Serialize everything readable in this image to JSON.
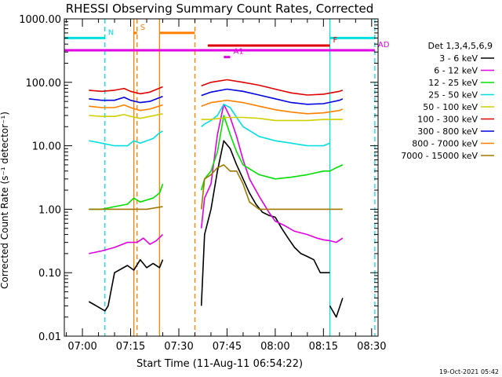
{
  "chart_data": {
    "type": "line",
    "title": "RHESSI Observing Summary Count Rates, Corrected",
    "xlabel": "Start Time (11-Aug-11 06:54:22)",
    "ylabel": "Corrected Count Rate (s⁻¹ detector⁻¹)",
    "yscale": "log",
    "ylim": [
      0.01,
      1000
    ],
    "xlim": [
      "06:54:22",
      "08:32:00"
    ],
    "y_ticks": [
      "0.01",
      "0.10",
      "1.00",
      "10.00",
      "100.00",
      "1000.00"
    ],
    "x_ticks": [
      "07:00",
      "07:15",
      "07:30",
      "07:45",
      "08:00",
      "08:15",
      "08:30"
    ],
    "legend": {
      "header": "Det 1,3,4,5,6,9",
      "placement": "right",
      "entries": [
        {
          "label": "3 - 6 keV",
          "color": "#000000"
        },
        {
          "label": "6 - 12 keV",
          "color": "#e000e0"
        },
        {
          "label": "12 - 25 keV",
          "color": "#00e000"
        },
        {
          "label": "25 - 50 keV",
          "color": "#00e0e0"
        },
        {
          "label": "50 - 100 keV",
          "color": "#d0d000"
        },
        {
          "label": "100 - 300 keV",
          "color": "#e00000"
        },
        {
          "label": "300 - 800 keV",
          "color": "#0000e0"
        },
        {
          "label": "800 - 7000 keV",
          "color": "#ff8000"
        },
        {
          "label": "7000 - 15000 keV",
          "color": "#a07800"
        }
      ]
    },
    "series": [
      {
        "name": "3 - 6 keV",
        "color": "#000000",
        "x": [
          "07:02",
          "07:07",
          "07:08",
          "07:10",
          "07:14",
          "07:16",
          "07:18",
          "07:20",
          "07:22",
          "07:24",
          "07:25",
          null,
          "07:37",
          "07:38",
          "07:40",
          "07:42",
          "07:44",
          "07:46",
          "07:48",
          "07:50",
          "07:52",
          "07:54",
          "07:56",
          "07:58",
          "08:00",
          "08:02",
          "08:04",
          "08:06",
          "08:08",
          "08:10",
          "08:12",
          "08:14",
          "08:16",
          "08:17",
          null,
          "08:17",
          "08:19",
          "08:21"
        ],
        "y": [
          0.035,
          0.025,
          0.03,
          0.1,
          0.13,
          0.11,
          0.16,
          0.12,
          0.14,
          0.12,
          0.16,
          null,
          0.03,
          0.4,
          1.0,
          4.0,
          12,
          9,
          5,
          3,
          1.8,
          1.2,
          0.9,
          0.8,
          0.75,
          0.5,
          0.35,
          0.25,
          0.2,
          0.18,
          0.16,
          0.1,
          0.1,
          0.1,
          null,
          0.03,
          0.02,
          0.04
        ]
      },
      {
        "name": "6 - 12 keV",
        "color": "#e000e0",
        "x": [
          "07:02",
          "07:06",
          "07:10",
          "07:14",
          "07:17",
          "07:19",
          "07:21",
          "07:23",
          "07:25",
          null,
          "07:37",
          "07:38",
          "07:40",
          "07:42",
          "07:44",
          "07:46",
          "07:48",
          "07:50",
          "07:52",
          "07:55",
          "07:58",
          "08:00",
          "08:03",
          "08:06",
          "08:10",
          "08:13",
          "08:15",
          "08:17",
          "08:19",
          "08:21"
        ],
        "y": [
          0.2,
          0.22,
          0.25,
          0.3,
          0.3,
          0.35,
          0.28,
          0.32,
          0.4,
          null,
          0.5,
          1.5,
          2.5,
          15,
          45,
          28,
          14,
          6,
          3,
          1.6,
          0.9,
          0.65,
          0.55,
          0.45,
          0.4,
          0.35,
          0.33,
          0.32,
          0.3,
          0.35
        ]
      },
      {
        "name": "12 - 25 keV",
        "color": "#00e000",
        "x": [
          "07:02",
          "07:06",
          "07:10",
          "07:14",
          "07:16",
          "07:18",
          "07:20",
          "07:22",
          "07:24",
          "07:25",
          null,
          "07:37",
          "07:38",
          "07:40",
          "07:42",
          "07:44",
          "07:46",
          "07:48",
          "07:50",
          "07:55",
          "08:00",
          "08:05",
          "08:10",
          "08:15",
          "08:17",
          "08:19",
          "08:21"
        ],
        "y": [
          1.0,
          1.0,
          1.1,
          1.2,
          1.5,
          1.3,
          1.4,
          1.5,
          1.8,
          2.5,
          null,
          2.0,
          3.0,
          4.0,
          8,
          30,
          15,
          8,
          5,
          3.5,
          3,
          3.2,
          3.5,
          4,
          4,
          4.5,
          5
        ]
      },
      {
        "name": "25 - 50 keV",
        "color": "#00e0e0",
        "x": [
          "07:02",
          "07:06",
          "07:10",
          "07:14",
          "07:16",
          "07:18",
          "07:20",
          "07:22",
          "07:24",
          "07:25",
          null,
          "07:37",
          "07:38",
          "07:40",
          "07:42",
          "07:44",
          "07:46",
          "07:48",
          "07:50",
          "07:55",
          "08:00",
          "08:05",
          "08:10",
          "08:15",
          "08:17"
        ],
        "y": [
          12,
          11,
          10,
          10,
          12,
          11,
          12,
          13,
          16,
          17,
          null,
          20,
          22,
          25,
          30,
          45,
          40,
          28,
          20,
          14,
          12,
          11,
          10,
          10,
          11
        ]
      },
      {
        "name": "50 - 100 keV",
        "color": "#d0d000",
        "x": [
          "07:02",
          "07:06",
          "07:10",
          "07:13",
          "07:15",
          "07:18",
          "07:21",
          "07:25",
          null,
          "07:37",
          "07:40",
          "07:45",
          "07:50",
          "07:55",
          "08:00",
          "08:05",
          "08:10",
          "08:15",
          "08:20",
          "08:21"
        ],
        "y": [
          30,
          29,
          29,
          31,
          29,
          27,
          29,
          32,
          null,
          26,
          26,
          28,
          28,
          27,
          25,
          25,
          25,
          26,
          26,
          26
        ]
      },
      {
        "name": "100 - 300 keV",
        "color": "#e00000",
        "x": [
          "07:02",
          "07:06",
          "07:10",
          "07:13",
          "07:15",
          "07:18",
          "07:21",
          "07:25",
          null,
          "07:37",
          "07:40",
          "07:45",
          "07:50",
          "07:55",
          "08:00",
          "08:05",
          "08:10",
          "08:15",
          "08:20",
          "08:21"
        ],
        "y": [
          75,
          72,
          75,
          80,
          72,
          66,
          70,
          85,
          null,
          88,
          100,
          110,
          100,
          90,
          78,
          68,
          63,
          65,
          72,
          75
        ]
      },
      {
        "name": "300 - 800 keV",
        "color": "#0000e0",
        "x": [
          "07:02",
          "07:06",
          "07:10",
          "07:13",
          "07:15",
          "07:18",
          "07:21",
          "07:25",
          null,
          "07:37",
          "07:40",
          "07:45",
          "07:50",
          "07:55",
          "08:00",
          "08:05",
          "08:10",
          "08:15",
          "08:20",
          "08:21"
        ],
        "y": [
          55,
          52,
          52,
          58,
          52,
          48,
          50,
          60,
          null,
          62,
          70,
          78,
          72,
          63,
          55,
          48,
          45,
          46,
          52,
          55
        ]
      },
      {
        "name": "800 - 7000 keV",
        "color": "#ff8000",
        "x": [
          "07:02",
          "07:06",
          "07:10",
          "07:13",
          "07:15",
          "07:18",
          "07:21",
          "07:25",
          null,
          "07:37",
          "07:40",
          "07:45",
          "07:50",
          "07:55",
          "08:00",
          "08:05",
          "08:10",
          "08:15",
          "08:20",
          "08:21"
        ],
        "y": [
          42,
          40,
          40,
          44,
          40,
          36,
          38,
          44,
          null,
          42,
          48,
          52,
          48,
          42,
          37,
          34,
          32,
          33,
          36,
          38
        ]
      },
      {
        "name": "7000 - 15000 keV",
        "color": "#a07800",
        "x": [
          "07:02",
          "07:06",
          "07:10",
          "07:15",
          "07:20",
          "07:25",
          null,
          "07:37",
          "07:38",
          "07:40",
          "07:42",
          "07:44",
          "07:46",
          "07:48",
          "07:50",
          "07:52",
          "07:55",
          "08:00",
          "08:05",
          "08:10",
          "08:15",
          "08:20",
          "08:21"
        ],
        "y": [
          1.0,
          1.0,
          1.0,
          1.0,
          1.0,
          1.1,
          null,
          1.0,
          3.0,
          3.5,
          4.5,
          5.0,
          4.0,
          4.0,
          2.5,
          1.3,
          1.0,
          1.0,
          1.0,
          1.0,
          1.0,
          1.0,
          1.0
        ]
      }
    ],
    "attenuator_bars": [
      {
        "label": "N",
        "color": "#00e0e0",
        "y": 500,
        "segments": [
          [
            "06:54:22",
            "07:07"
          ],
          [
            "08:17",
            "08:31"
          ]
        ]
      },
      {
        "label": "S",
        "color": "#ff8000",
        "y": 600,
        "segments": [
          [
            "07:16",
            "07:17"
          ]
        ]
      },
      {
        "label": "",
        "color": "#ff8000",
        "y": 600,
        "segments": [
          [
            "07:24",
            "07:35"
          ]
        ]
      },
      {
        "label": "F",
        "color": "#e00000",
        "y": 380,
        "segments": [
          [
            "07:39",
            "08:17"
          ]
        ]
      },
      {
        "label": "AD",
        "color": "#e000e0",
        "y": 320,
        "segments": [
          [
            "06:54:22",
            "08:31"
          ]
        ]
      },
      {
        "label": "A1",
        "color": "#e000e0",
        "y": 250,
        "segments": [
          [
            "07:44",
            "07:46"
          ]
        ]
      }
    ],
    "vertical_markers": [
      {
        "time": "07:07",
        "color": "#00e0e0",
        "style": "dashed"
      },
      {
        "time": "07:16",
        "color": "#ff8000",
        "style": "solid"
      },
      {
        "time": "07:17",
        "color": "#ff8000",
        "style": "dashed"
      },
      {
        "time": "07:24",
        "color": "#ff8000",
        "style": "solid"
      },
      {
        "time": "07:35",
        "color": "#ff8000",
        "style": "dashed"
      },
      {
        "time": "08:17",
        "color": "#00e0e0",
        "style": "solid"
      },
      {
        "time": "08:31",
        "color": "#00e0e0",
        "style": "dashed"
      }
    ]
  },
  "footer": {
    "date_stamp": "19-Oct-2021 05:42"
  }
}
